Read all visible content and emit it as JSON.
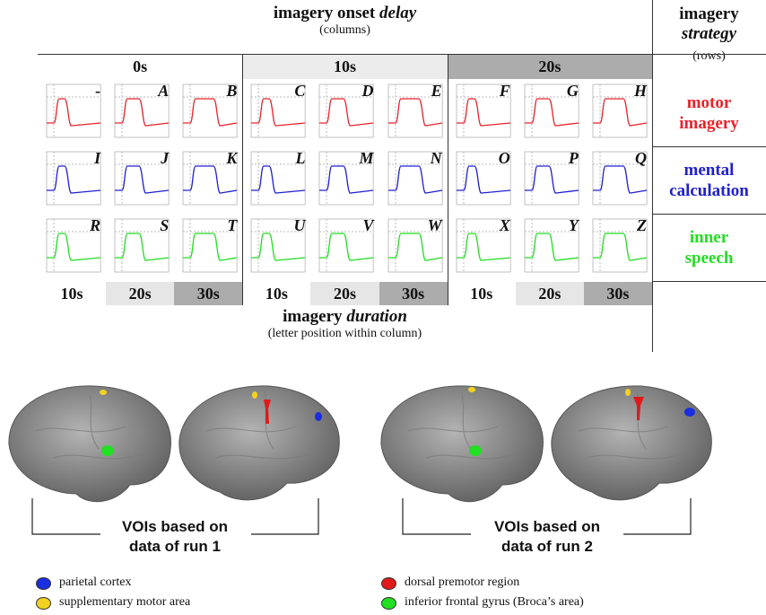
{
  "header": {
    "title": "imagery onset",
    "emphasis": "delay",
    "subtitle": "(columns)"
  },
  "strategy_header": {
    "title": "imagery",
    "emphasis": "strategy",
    "subtitle": "(rows)"
  },
  "delays": [
    "0s",
    "10s",
    "20s"
  ],
  "strategies": [
    {
      "lines": [
        "motor",
        "imagery"
      ],
      "color": "#e8232a"
    },
    {
      "lines": [
        "mental",
        "calculation"
      ],
      "color": "#2020d0"
    },
    {
      "lines": [
        "inner",
        "speech"
      ],
      "color": "#22dd22"
    }
  ],
  "cells": [
    [
      "-",
      "A",
      "B",
      "C",
      "D",
      "E",
      "F",
      "G",
      "H"
    ],
    [
      "I",
      "J",
      "K",
      "L",
      "M",
      "N",
      "O",
      "P",
      "Q"
    ],
    [
      "R",
      "S",
      "T",
      "U",
      "V",
      "W",
      "X",
      "Y",
      "Z"
    ]
  ],
  "durations": [
    "10s",
    "20s",
    "30s",
    "10s",
    "20s",
    "30s",
    "10s",
    "20s",
    "30s"
  ],
  "footer": {
    "title": "imagery",
    "emphasis": "duration",
    "subtitle": "(letter position within column)"
  },
  "captions": [
    [
      "VOIs based on",
      "data of run 1"
    ],
    [
      "VOIs based on",
      "data of run 2"
    ]
  ],
  "legend": [
    {
      "label": "parietal cortex",
      "color": "#1a2ee0"
    },
    {
      "label": "dorsal premotor region",
      "color": "#e01a1a"
    },
    {
      "label": "supplementary motor area",
      "color": "#f2d21e"
    },
    {
      "label": "inferior frontal gyrus (Broca’s area)",
      "color": "#22e022"
    }
  ]
}
